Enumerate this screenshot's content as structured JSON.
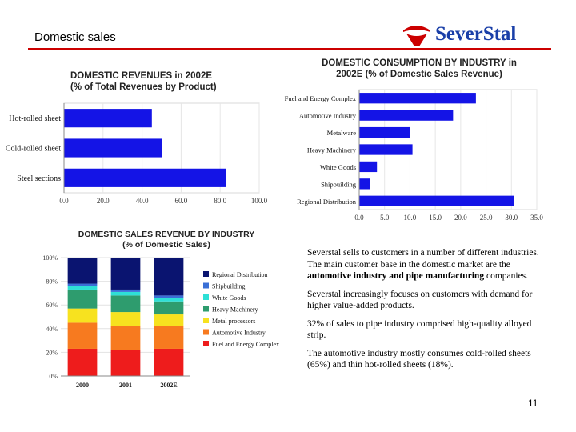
{
  "slide": {
    "title": "Domestic sales",
    "page_number": "11",
    "logo_text": "SeverStal",
    "accent_color": "#cc0000",
    "logo_color": "#1a3fa8"
  },
  "text": {
    "para1_prefix": "Severstal sells to customers in a number of different industries. The main customer base in the domestic market are the ",
    "para1_bold": "automotive industry and pipe manufacturing",
    "para1_suffix": " companies.",
    "para2": "Severstal increasingly focuses on customers with demand for higher value-added products.",
    "para3": "32% of sales to pipe industry comprised high-quality alloyed strip.",
    "para4": "The automotive industry mostly consumes cold-rolled sheets (65%) and thin hot-rolled sheets (18%)."
  },
  "chart_data": [
    {
      "type": "bar",
      "orientation": "horizontal",
      "title": "DOMESTIC REVENUES in 2002E\n(% of Total Revenues by Product)",
      "title_line1": "DOMESTIC REVENUES in  2002E",
      "title_line2": "(%   of Total Revenues by Product)",
      "categories": [
        "Hot-rolled sheet",
        "Cold-rolled sheet",
        "Steel sections"
      ],
      "values": [
        45,
        50,
        83
      ],
      "xlim": [
        0,
        100
      ],
      "ticks": [
        "0.0",
        "20.0",
        "40.0",
        "60.0",
        "80.0",
        "100.0"
      ],
      "color": "#1414e6"
    },
    {
      "type": "bar",
      "orientation": "horizontal",
      "title": "DOMESTIC CONSUMPTION BY INDUSTRY in 2002E (% of Domestic Sales Revenue)",
      "title_line1": "DOMESTIC CONSUMPTION BY INDUSTRY in",
      "title_line2": "2002E (% of Domestic Sales Revenue)",
      "categories": [
        "Fuel and Energy Complex",
        "Automotive Industry",
        "Metalware",
        "Heavy Machinery",
        "White Goods",
        "Shipbuilding",
        "Regional Distribution"
      ],
      "values": [
        23,
        18.5,
        10,
        10.5,
        3.5,
        2.2,
        30.5
      ],
      "xlim": [
        0,
        35
      ],
      "ticks": [
        "0.0",
        "5.0",
        "10.0",
        "15.0",
        "20.0",
        "25.0",
        "30.0",
        "35.0"
      ],
      "color": "#1414e6"
    },
    {
      "type": "bar",
      "stacked": true,
      "title": "DOMESTIC SALES REVENUE BY INDUSTRY (% of Domestic Sales)",
      "title_line1": "DOMESTIC SALES REVENUE BY INDUSTRY",
      "title_line2": "(% of Domestic Sales)",
      "categories": [
        "2000",
        "2001",
        "2002E"
      ],
      "yticks": [
        "0%",
        "20%",
        "40%",
        "60%",
        "80%",
        "100%"
      ],
      "ylim": [
        0,
        100
      ],
      "series": [
        {
          "name": "Fuel and Energy Complex",
          "color": "#ee1c1c",
          "values": [
            23,
            22,
            23
          ]
        },
        {
          "name": "Automotive Industry",
          "color": "#f77a1f",
          "values": [
            22,
            20,
            19
          ]
        },
        {
          "name": "Metal processors",
          "color": "#f7e21f",
          "values": [
            12,
            12,
            10
          ]
        },
        {
          "name": "Heavy Machinery",
          "color": "#2e9c6e",
          "values": [
            16,
            14,
            11
          ]
        },
        {
          "name": "White Goods",
          "color": "#2ee0d6",
          "values": [
            3,
            3,
            3
          ]
        },
        {
          "name": "Shipbuilding",
          "color": "#3a6fd6",
          "values": [
            2,
            2,
            2
          ]
        },
        {
          "name": "Regional Distribution",
          "color": "#0a1470",
          "values": [
            22,
            27,
            32
          ]
        }
      ]
    }
  ]
}
